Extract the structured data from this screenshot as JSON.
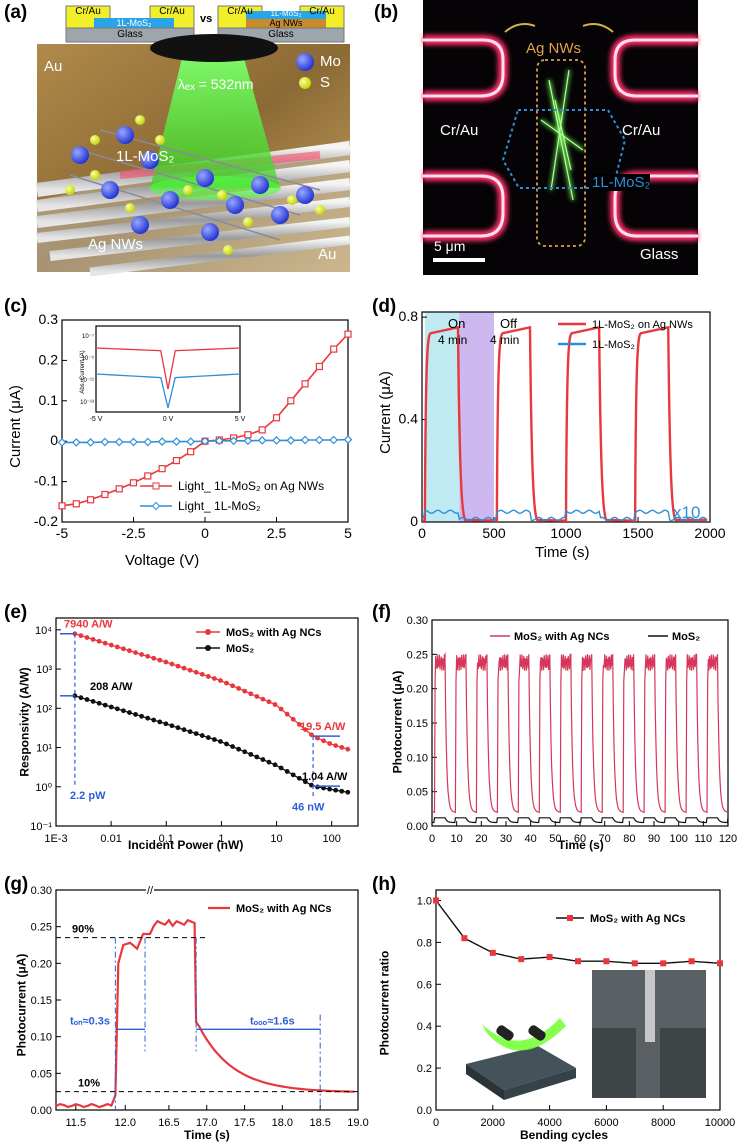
{
  "panel_labels": {
    "a": "(a)",
    "b": "(b)",
    "c": "(c)",
    "d": "(d)",
    "e": "(e)",
    "f": "(f)",
    "g": "(g)",
    "h": "(h)"
  },
  "panel_a": {
    "left_device": {
      "electrode_left": "Cr/Au",
      "channel": "1L-MoS₂",
      "electrode_right": "Cr/Au",
      "substrate": "Glass"
    },
    "vs": "vs",
    "right_device": {
      "electrode_left": "Cr/Au",
      "channel": "1L-MoS₂",
      "electrode_right": "Cr/Au",
      "nanowire": "Ag NWs",
      "substrate": "Glass"
    },
    "au_top": "Au",
    "au_bottom": "Au",
    "laser": "λₑₓ = 532nm",
    "legend_mo": "Mo",
    "legend_s": "S",
    "mos2_label": "1L-MoS₂",
    "agnw_label": "Ag NWs"
  },
  "panel_b": {
    "agnw": "Ag NWs",
    "left_electrode": "Cr/Au",
    "right_electrode": "Cr/Au",
    "mos2": "1L-MoS₂",
    "scale": "5 μm",
    "substrate": "Glass"
  },
  "chart_data": [
    {
      "id": "c",
      "type": "line",
      "xlabel": "Voltage (V)",
      "ylabel": "Current (μA)",
      "xlim": [
        -5,
        5
      ],
      "ylim": [
        -0.2,
        0.3
      ],
      "xticks": [
        "-5",
        "-2.5",
        "0",
        "2.5",
        "5"
      ],
      "yticks": [
        "-0.2",
        "-0.1",
        "0",
        "0.1",
        "0.2",
        "0.3"
      ],
      "series": [
        {
          "name": "Light_ 1L-MoS₂ on Ag NWs",
          "color": "#e8373d",
          "x": [
            -5,
            -4.5,
            -4,
            -3.5,
            -3,
            -2.5,
            -2,
            -1.5,
            -1,
            -0.5,
            0,
            0.5,
            1,
            1.5,
            2,
            2.5,
            3,
            3.5,
            4,
            4.5,
            5
          ],
          "y": [
            -0.16,
            -0.155,
            -0.145,
            -0.132,
            -0.118,
            -0.103,
            -0.086,
            -0.068,
            -0.048,
            -0.026,
            0,
            0.003,
            0.008,
            0.016,
            0.028,
            0.058,
            0.1,
            0.142,
            0.185,
            0.228,
            0.265
          ]
        },
        {
          "name": "Light_ 1L-MoS₂",
          "color": "#2e8fd8",
          "x": [
            -5,
            -4.5,
            -4,
            -3.5,
            -3,
            -2.5,
            -2,
            -1.5,
            -1,
            -0.5,
            0,
            0.5,
            1,
            1.5,
            2,
            2.5,
            3,
            3.5,
            4,
            4.5,
            5
          ],
          "y": [
            -0.003,
            -0.003,
            -0.003,
            -0.002,
            -0.002,
            -0.002,
            -0.002,
            -0.001,
            -0.001,
            -0.001,
            0,
            0.001,
            0.001,
            0.001,
            0.002,
            0.002,
            0.002,
            0.003,
            0.003,
            0.003,
            0.004
          ]
        }
      ],
      "inset": {
        "ylabel": "Abs. Current (A)",
        "xticks": [
          "-5 V",
          "0 V",
          "5 V"
        ],
        "yticks": [
          "10⁻⁷",
          "10⁻⁹",
          "10⁻¹¹",
          "10⁻¹³"
        ]
      }
    },
    {
      "id": "d",
      "type": "line",
      "xlabel": "Time (s)",
      "ylabel": "Current (μA)",
      "xlim": [
        0,
        2000
      ],
      "ylim": [
        0,
        0.8
      ],
      "xticks": [
        "0",
        "500",
        "1000",
        "1500",
        "2000"
      ],
      "yticks": [
        "0",
        "0.4",
        "0.8"
      ],
      "on_label": "On",
      "on_time": "4 min",
      "off_label": "Off",
      "off_time": "4 min",
      "multiplier": "x10",
      "cycles_on_s": [
        20,
        520,
        1000,
        1480
      ],
      "series": [
        {
          "name": "1L-MoS₂ on Ag NWs",
          "color": "#e8373d",
          "plateau": 0.76
        },
        {
          "name": "1L-MoS₂",
          "color": "#2e8fd8",
          "plateau": 0.04
        }
      ]
    },
    {
      "id": "e",
      "type": "scatter",
      "xlabel": "Incident Power (nW)",
      "ylabel": "Responsivity (A/W)",
      "xscale": "log",
      "yscale": "log",
      "xlim": [
        0.001,
        300
      ],
      "ylim": [
        0.1,
        20000
      ],
      "xticks": [
        "1E-3",
        "0.01",
        "0.1",
        "1",
        "10",
        "100"
      ],
      "yticks": [
        "10⁻¹",
        "10⁰",
        "10¹",
        "10²",
        "10³",
        "10⁴"
      ],
      "annotations": {
        "r1": "7940 A/W",
        "r2": "208 A/W",
        "p1": "2.2 pW",
        "r3": "19.5 A/W",
        "r4": "1.04 A/W",
        "p2": "46 nW"
      },
      "series": [
        {
          "name": "MoS₂ with Ag NCs",
          "color": "#e8373d",
          "x": [
            0.0022,
            0.1,
            1,
            10,
            46,
            100,
            200
          ],
          "y": [
            7940,
            1500,
            500,
            120,
            19.5,
            12,
            9
          ]
        },
        {
          "name": "MoS₂",
          "color": "#111111",
          "x": [
            0.0022,
            0.1,
            1,
            10,
            46,
            100,
            200
          ],
          "y": [
            208,
            40,
            14,
            3.5,
            1.04,
            0.85,
            0.72
          ]
        }
      ]
    },
    {
      "id": "f",
      "type": "line",
      "xlabel": "Time (s)",
      "ylabel": "Photocurrent (μA)",
      "xlim": [
        0,
        120
      ],
      "ylim": [
        0,
        0.3
      ],
      "xticks": [
        "0",
        "10",
        "20",
        "30",
        "40",
        "50",
        "60",
        "70",
        "80",
        "90",
        "100",
        "110",
        "120"
      ],
      "yticks": [
        "0.00",
        "0.05",
        "0.10",
        "0.15",
        "0.20",
        "0.25",
        "0.30"
      ],
      "period_s": 8.5,
      "series": [
        {
          "name": "MoS₂ with Ag NCs",
          "color": "#d6365a",
          "plateau": 0.25
        },
        {
          "name": "MoS₂",
          "color": "#111111",
          "plateau": 0.012
        }
      ]
    },
    {
      "id": "g",
      "type": "line",
      "xlabel": "Time (s)",
      "ylabel": "Photocurrent (μA)",
      "xticks": [
        "11.5",
        "12.0",
        "16.5",
        "17.0",
        "17.5",
        "18.0",
        "18.5",
        "19.0"
      ],
      "yticks": [
        "0.00",
        "0.05",
        "0.10",
        "0.15",
        "0.20",
        "0.25",
        "0.30"
      ],
      "ylim": [
        0,
        0.3
      ],
      "annotations": {
        "p90": "90%",
        "p10": "10%",
        "ton": "tₒₙ≈0.3s",
        "toff": "tₒₒₒ≈1.6s"
      },
      "series": [
        {
          "name": "MoS₂ with Ag NCs",
          "color": "#e8373d"
        }
      ]
    },
    {
      "id": "h",
      "type": "line",
      "xlabel": "Bending cycles",
      "ylabel": "Photocurrent ratio",
      "xlim": [
        0,
        10000
      ],
      "ylim": [
        0,
        1.05
      ],
      "xticks": [
        "0",
        "2000",
        "4000",
        "6000",
        "8000",
        "10000"
      ],
      "yticks": [
        "0.0",
        "0.2",
        "0.4",
        "0.6",
        "0.8",
        "1.0"
      ],
      "series": [
        {
          "name": "MoS₂ with Ag NCs",
          "color": "#e8373d",
          "x": [
            0,
            1000,
            2000,
            3000,
            4000,
            5000,
            6000,
            7000,
            8000,
            9000,
            10000
          ],
          "y": [
            1.0,
            0.82,
            0.75,
            0.72,
            0.73,
            0.71,
            0.71,
            0.7,
            0.7,
            0.71,
            0.7
          ]
        }
      ]
    }
  ]
}
